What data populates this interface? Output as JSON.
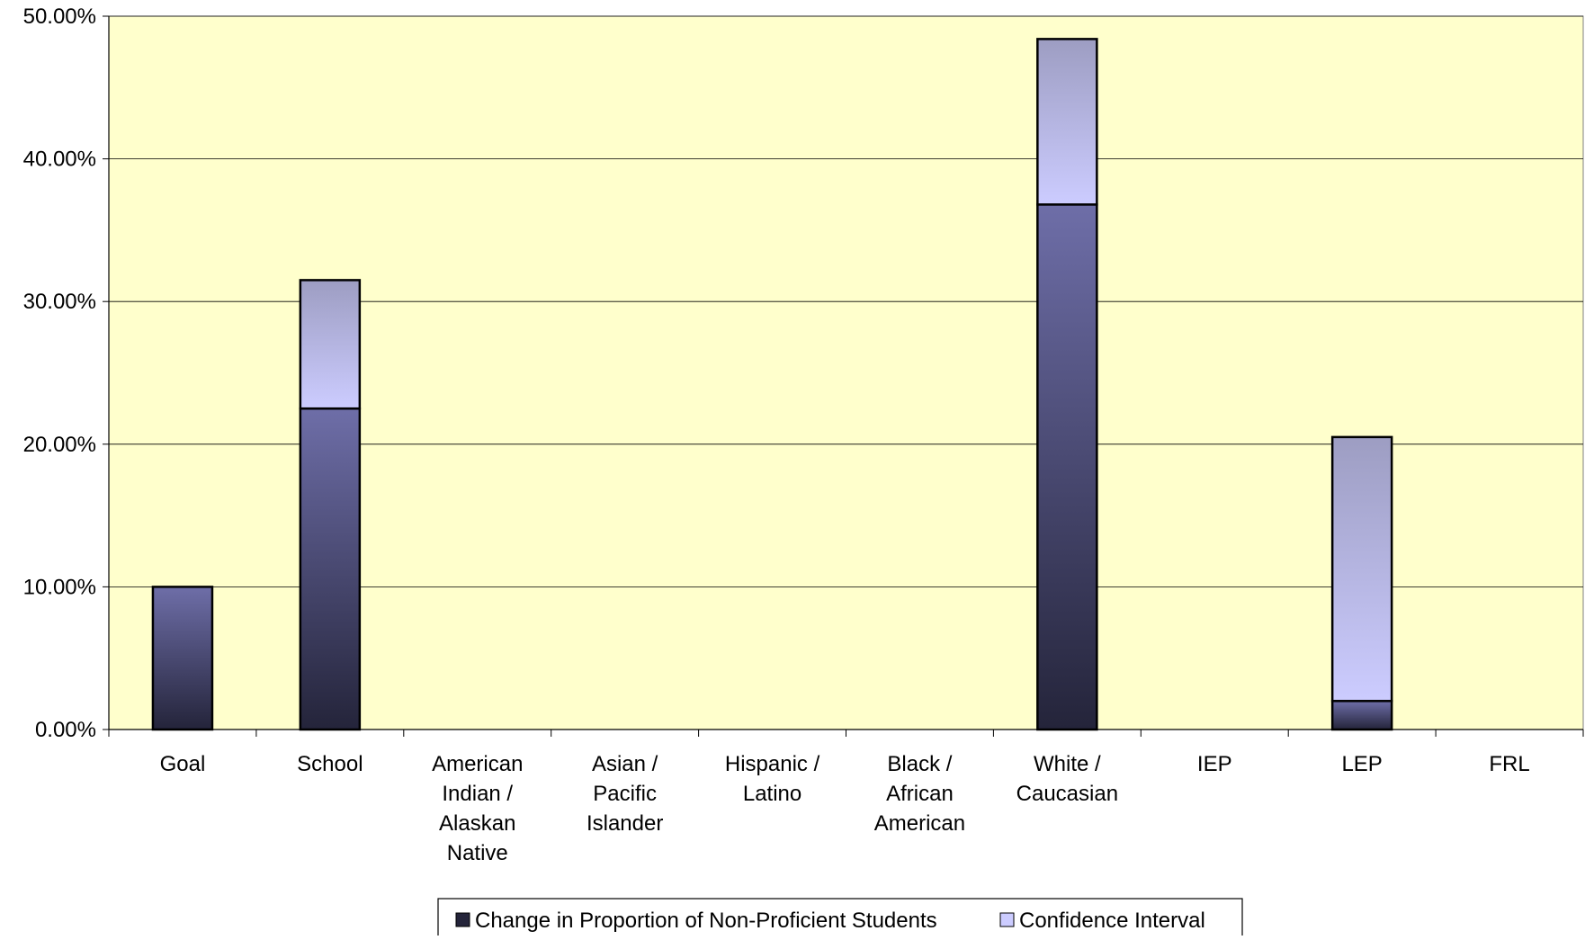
{
  "chart_data": {
    "type": "bar",
    "stacked": true,
    "categories": [
      [
        "Goal"
      ],
      [
        "School"
      ],
      [
        "American",
        "Indian /",
        "Alaskan",
        "Native"
      ],
      [
        "Asian /",
        "Pacific",
        "Islander"
      ],
      [
        "Hispanic /",
        "Latino"
      ],
      [
        "Black /",
        "African",
        "American"
      ],
      [
        "White /",
        "Caucasian"
      ],
      [
        "IEP"
      ],
      [
        "LEP"
      ],
      [
        "FRL"
      ]
    ],
    "series": [
      {
        "name": "Change in Proportion of Non-Proficient Students",
        "values": [
          10.0,
          22.5,
          null,
          null,
          null,
          null,
          36.8,
          null,
          2.0,
          null
        ]
      },
      {
        "name": "Confidence Interval",
        "values": [
          null,
          9.0,
          null,
          null,
          null,
          null,
          11.6,
          null,
          18.5,
          null
        ]
      }
    ],
    "ylim": [
      0,
      50
    ],
    "y_ticks": [
      "0.00%",
      "10.00%",
      "20.00%",
      "30.00%",
      "40.00%",
      "50.00%"
    ],
    "y_tick_values": [
      0,
      10,
      20,
      30,
      40,
      50
    ],
    "grid": true,
    "legend_position": "bottom",
    "colors": {
      "plot_background": "#ffffcc",
      "series_1_light": "#6e6ea8",
      "series_1_dark": "#24243a",
      "series_2_light": "#ccccff",
      "series_2_dark": "#9d9dc2",
      "gridline": "#000000"
    }
  }
}
